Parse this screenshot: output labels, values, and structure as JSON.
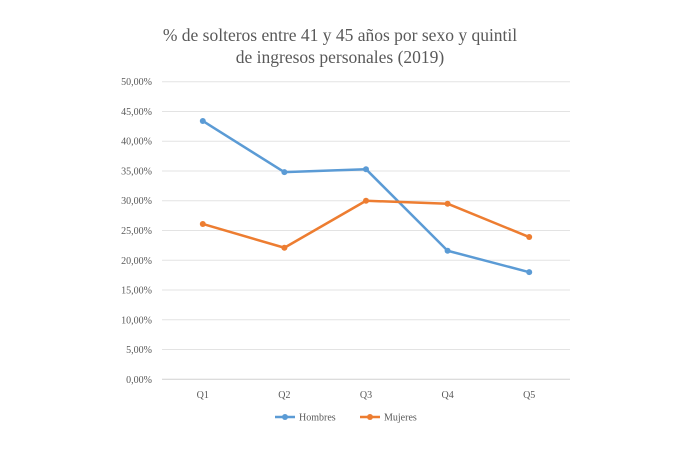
{
  "chart_data": {
    "type": "line",
    "title_line1": "% de solteros entre 41 y 45 años por sexo y quintil",
    "title_line2": "de ingresos personales (2019)",
    "categories": [
      "Q1",
      "Q2",
      "Q3",
      "Q4",
      "Q5"
    ],
    "ylim": [
      0,
      50
    ],
    "yticks": [
      "0,00%",
      "5,00%",
      "10,00%",
      "15,00%",
      "20,00%",
      "25,00%",
      "30,00%",
      "35,00%",
      "40,00%",
      "45,00%",
      "50,00%"
    ],
    "grid": true,
    "legend_position": "bottom",
    "series": [
      {
        "name": "Hombres",
        "color": "#5b9bd5",
        "values": [
          43.4,
          34.8,
          35.3,
          21.6,
          18.0
        ]
      },
      {
        "name": "Mujeres",
        "color": "#ed7d31",
        "values": [
          26.1,
          22.1,
          30.0,
          29.5,
          23.9
        ]
      }
    ]
  }
}
